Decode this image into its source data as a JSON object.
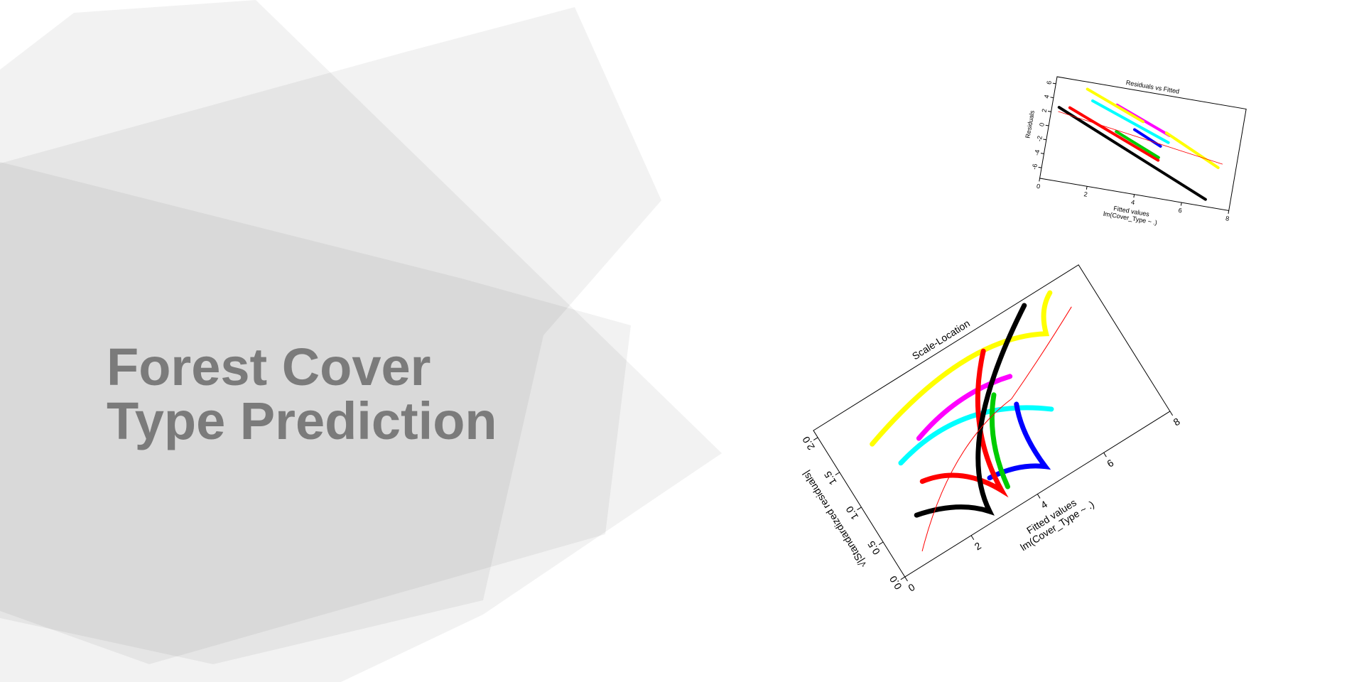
{
  "title_lines": [
    "Forest Cover",
    "Type Prediction"
  ],
  "plots": [
    {
      "title": "Residuals vs Fitted",
      "x_label": "Fitted values",
      "x_sublabel": "lm(Cover_Type ~ .)",
      "y_label": "Residuals",
      "xlim": [
        0,
        8
      ],
      "xticks": [
        0,
        2,
        4,
        6,
        8
      ],
      "ylim": [
        -7.5,
        7
      ],
      "yticks": [
        -6,
        -4,
        -2,
        0,
        2,
        4,
        6
      ]
    },
    {
      "title": "Scale-Location",
      "x_label": "Fitted values",
      "x_sublabel": "lm(Cover_Type ~ .)",
      "y_label": "√|Standardized residuals|",
      "xlim": [
        0,
        8
      ],
      "xticks": [
        0,
        2,
        4,
        6,
        8
      ],
      "ylim": [
        0,
        2.1
      ],
      "yticks": [
        {
          "value": 0,
          "label": "0.0"
        },
        {
          "value": 0.5,
          "label": "0.5"
        },
        {
          "value": 1,
          "label": "1.0"
        },
        {
          "value": 1.5,
          "label": "1.5"
        },
        {
          "value": 2,
          "label": "2.0"
        }
      ]
    }
  ]
}
